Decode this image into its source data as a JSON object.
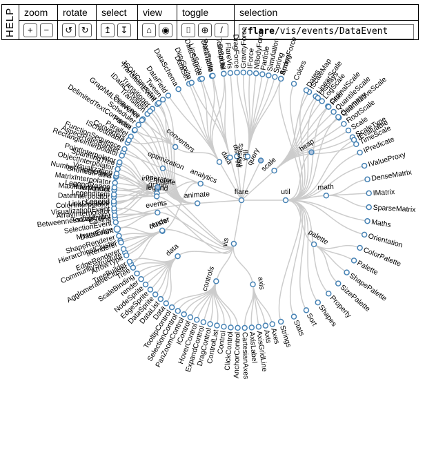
{
  "toolbar": {
    "help": "HELP",
    "zoom": {
      "label": "zoom",
      "in": "+",
      "out": "−"
    },
    "rotate": {
      "label": "rotate",
      "ccw": "↺",
      "cw": "↻"
    },
    "select": {
      "label": "select",
      "up": "↥",
      "down": "↧"
    },
    "view": {
      "label": "view",
      "tree": "⌂",
      "radial": "◉"
    },
    "toggle": {
      "label": "toggle",
      "a": "⌷",
      "b": "⊕",
      "c": "/"
    },
    "selection": {
      "label": "selection",
      "root": "flare",
      "rest": "/vis/events/DataEvent"
    }
  },
  "colors": {
    "node_fill": "#ffffff",
    "node_expanded": "#b0c4de",
    "node_stroke": "#4682b4",
    "selected": "#b30000",
    "link": "#cccccc"
  },
  "tree": {
    "flare": {
      "analytics": {
        "cluster": [
          "AgglomerativeCluster",
          "CommunityStructure",
          "HierarchicalCluster",
          "MergeEdge"
        ],
        "graph": [
          "BetweennessCentrality",
          "LinkDistance",
          "MaxFlowMinCut",
          "ShortestPaths",
          "SpanningTree"
        ],
        "optimization": [
          "AspectRatioBanker"
        ]
      },
      "animate": {
        "_": [
          "Easing"
        ],
        "interpolate": [
          "ArrayInterpolator",
          "ColorInterpolator",
          "DateInterpolator",
          "Interpolator",
          "MatrixInterpolator",
          "NumberInterpolator",
          "ObjectInterpolator",
          "PointInterpolator",
          "RectangleInterpolator"
        ],
        "__": [
          "FunctionSequence",
          "ISchedulable",
          "Parallel",
          "Pause",
          "Scheduler",
          "Sequence",
          "Transition",
          "Transitioner",
          "TransitionEvent",
          "Tween"
        ]
      },
      "data": {
        "converters": [
          "Converters",
          "DelimitedTextConverter",
          "GraphMLConverter",
          "IDataConverter",
          "JSONConverter"
        ],
        "_": [
          "DataField",
          "DataSchema",
          "DataSet",
          "DataSource",
          "DataTable",
          "DataUtil"
        ]
      },
      "display": [
        "DirtySprite",
        "LineSprite",
        "RectSprite",
        "TextSprite"
      ],
      "flex": [
        "FlareVis"
      ],
      "physics": [
        "DragForce",
        "GravityForce",
        "IForce",
        "NBodyForce",
        "Particle",
        "Simulation",
        "Spring",
        "SpringForce"
      ],
      "query": [],
      "scale": [
        "IScaleMap",
        "LinearScale",
        "LogScale",
        "OrdinalScale",
        "QuantileScale",
        "QuantitativeScale",
        "RootScale",
        "Scale",
        "ScaleType",
        "TimeScale"
      ],
      "util": {
        "_": [
          "Arrays",
          "Colors",
          "Dates",
          "Displays",
          "Filter",
          "Geometry"
        ],
        "heap": [],
        "__": [
          "IEvaluable",
          "IPredicate",
          "IValueProxy"
        ],
        "math": [
          "DenseMatrix",
          "IMatrix",
          "SparseMatrix"
        ],
        "___": [
          "Maths",
          "Orientation"
        ],
        "palette": [
          "ColorPalette",
          "Palette",
          "ShapePalette",
          "SizePalette"
        ],
        "____": [
          "Property",
          "Shapes",
          "Sort",
          "Stats",
          "Strings"
        ]
      },
      "vis": {
        "axis": [
          "Axes",
          "Axis",
          "AxisGridLine",
          "AxisLabel",
          "CartesianAxes"
        ],
        "controls": [
          "AnchorControl",
          "ClickControl",
          "Control",
          "ControlList",
          "DragControl",
          "ExpandControl",
          "HoverControl",
          "IControl",
          "PanZoomControl",
          "SelectionControl",
          "TooltipControl"
        ],
        "data": [
          "Data",
          "DataList",
          "DataSprite",
          "EdgeSprite",
          "NodeSprite",
          "render",
          "ScaleBinding",
          "Tree",
          "TreeBuilder"
        ],
        "render": [
          "ArrowType",
          "EdgeRenderer",
          "IRenderer",
          "ShapeRenderer"
        ],
        "events": [
          "DataEvent",
          "SelectionEvent",
          "TooltipEvent",
          "VisualizationEvent"
        ],
        "legend": [
          "Legend",
          "LegendItem",
          "LegendRange"
        ],
        "operator": [],
        "_": [
          "Visualization"
        ]
      }
    }
  }
}
